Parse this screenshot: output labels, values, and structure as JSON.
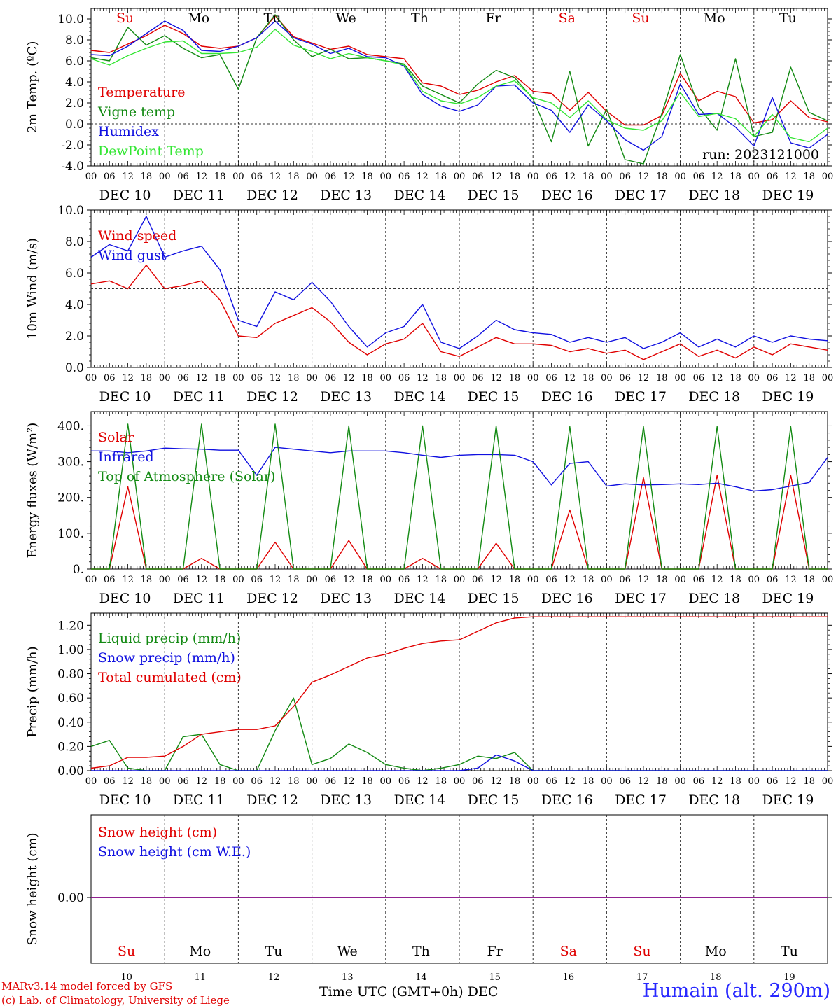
{
  "colors": {
    "red": "#e00000",
    "green": "#138a13",
    "blue": "#1010e0",
    "lightgreen": "#33e633",
    "purple": "#800080",
    "station": "#2828ff"
  },
  "footer": {
    "credit_line1": "MARv3.14 model forced by GFS",
    "credit_line2": "(c) Lab. of Climatology, University of Liege",
    "xaxis_label": "Time UTC (GMT+0h) DEC",
    "station": "Humain (alt. 290m)"
  },
  "days": {
    "weekday_labels": [
      "Su",
      "Mo",
      "Tu",
      "We",
      "Th",
      "Fr",
      "Sa",
      "Su",
      "Mo",
      "Tu"
    ],
    "weekday_red": [
      true,
      false,
      false,
      false,
      false,
      false,
      true,
      true,
      false,
      false
    ],
    "date_labels": [
      "DEC 10",
      "DEC 11",
      "DEC 12",
      "DEC 13",
      "DEC 14",
      "DEC 15",
      "DEC 16",
      "DEC 17",
      "DEC 18",
      "DEC 19"
    ],
    "day_numbers": [
      "10",
      "11",
      "12",
      "13",
      "14",
      "15",
      "16",
      "17",
      "18",
      "19"
    ],
    "hour_ticks": [
      "00",
      "06",
      "12",
      "18"
    ],
    "final_tick": "00"
  },
  "chart_data": [
    {
      "type": "line",
      "id": "temperature",
      "ylabel": "2m Temp. (ºC)",
      "ylim": [
        -4,
        11
      ],
      "yticks": [
        "-4.0",
        "-2.0",
        "0.0",
        "2.0",
        "4.0",
        "6.0",
        "8.0",
        "10.0"
      ],
      "ref_line": 0,
      "annotation": "run: 2023121000",
      "x_hours": [
        0,
        6,
        12,
        18,
        24,
        30,
        36,
        42,
        48,
        54,
        60,
        66,
        72,
        78,
        84,
        90,
        96,
        102,
        108,
        114,
        120,
        126,
        132,
        138,
        144,
        150,
        156,
        162,
        168,
        174,
        180,
        186,
        192,
        198,
        204,
        210,
        216,
        222,
        228,
        234,
        240
      ],
      "series": [
        {
          "name": "Temperature",
          "color": "red",
          "values": [
            7.0,
            6.8,
            7.6,
            8.4,
            9.4,
            8.6,
            7.4,
            7.2,
            7.4,
            8.2,
            10.3,
            8.3,
            7.7,
            7.1,
            7.4,
            6.6,
            6.4,
            6.2,
            3.9,
            3.6,
            2.8,
            3.2,
            4.0,
            4.6,
            3.1,
            2.9,
            1.3,
            3.0,
            1.2,
            -0.1,
            -0.1,
            0.8,
            4.8,
            2.2,
            3.1,
            2.6,
            0.1,
            0.4,
            2.2,
            0.6,
            0.2
          ]
        },
        {
          "name": "Vigne temp",
          "color": "green",
          "values": [
            6.3,
            6.0,
            9.2,
            7.5,
            8.4,
            7.2,
            6.3,
            6.6,
            3.3,
            8.2,
            10.4,
            8.0,
            6.4,
            7.1,
            6.2,
            6.3,
            6.0,
            5.7,
            3.6,
            2.8,
            2.0,
            3.8,
            5.1,
            4.4,
            2.4,
            -1.7,
            5.0,
            -2.1,
            1.4,
            -3.4,
            -3.8,
            1.0,
            6.6,
            1.6,
            -0.6,
            6.2,
            -1.2,
            -0.8,
            5.4,
            1.1,
            0.3
          ]
        },
        {
          "name": "Humidex",
          "color": "blue",
          "values": [
            6.6,
            6.5,
            7.4,
            8.6,
            9.8,
            8.9,
            7.0,
            6.9,
            7.4,
            8.2,
            9.8,
            8.2,
            7.6,
            6.7,
            7.2,
            6.4,
            6.3,
            5.5,
            2.8,
            1.7,
            1.2,
            1.8,
            3.6,
            3.7,
            2.0,
            1.3,
            -0.8,
            1.8,
            0.3,
            -1.5,
            -2.5,
            -1.2,
            3.8,
            0.9,
            1.0,
            -0.3,
            -2.1,
            2.5,
            -1.8,
            -2.3,
            -1.0
          ]
        },
        {
          "name": "DewPoint Temp",
          "color": "lightgreen",
          "values": [
            6.2,
            5.6,
            6.5,
            7.2,
            7.8,
            7.9,
            6.7,
            6.7,
            6.8,
            7.3,
            9.0,
            7.5,
            6.9,
            6.2,
            6.7,
            6.3,
            6.0,
            5.6,
            3.1,
            2.2,
            1.9,
            2.5,
            3.6,
            4.1,
            2.5,
            2.0,
            0.6,
            2.2,
            0.4,
            -0.4,
            -0.6,
            0.3,
            3.0,
            0.7,
            1.0,
            0.5,
            -1.2,
            0.9,
            -1.3,
            -1.7,
            -0.4
          ]
        }
      ]
    },
    {
      "type": "line",
      "id": "wind",
      "ylabel": "10m Wind (m/s)",
      "ylim": [
        0,
        10
      ],
      "yticks": [
        "0.0",
        "2.0",
        "4.0",
        "6.0",
        "8.0",
        "10.0"
      ],
      "ref_line": 5,
      "x_hours": [
        0,
        6,
        12,
        18,
        24,
        30,
        36,
        42,
        48,
        54,
        60,
        66,
        72,
        78,
        84,
        90,
        96,
        102,
        108,
        114,
        120,
        126,
        132,
        138,
        144,
        150,
        156,
        162,
        168,
        174,
        180,
        186,
        192,
        198,
        204,
        210,
        216,
        222,
        228,
        234,
        240
      ],
      "series": [
        {
          "name": "Wind speed",
          "color": "red",
          "values": [
            5.3,
            5.5,
            5.0,
            6.5,
            5.0,
            5.2,
            5.5,
            4.3,
            2.0,
            1.9,
            2.8,
            3.3,
            3.8,
            2.9,
            1.6,
            0.8,
            1.5,
            1.8,
            2.8,
            1.0,
            0.7,
            1.3,
            1.9,
            1.5,
            1.5,
            1.4,
            1.0,
            1.2,
            0.9,
            1.1,
            0.5,
            1.0,
            1.5,
            0.7,
            1.1,
            0.6,
            1.3,
            0.8,
            1.5,
            1.3,
            1.1
          ]
        },
        {
          "name": "Wind gust",
          "color": "blue",
          "values": [
            7.0,
            7.8,
            7.4,
            9.6,
            7.0,
            7.4,
            7.7,
            6.2,
            3.0,
            2.6,
            4.8,
            4.3,
            5.4,
            4.2,
            2.6,
            1.3,
            2.2,
            2.6,
            4.0,
            1.6,
            1.2,
            2.0,
            3.0,
            2.4,
            2.2,
            2.1,
            1.6,
            1.9,
            1.6,
            1.9,
            1.2,
            1.6,
            2.2,
            1.3,
            1.8,
            1.3,
            2.0,
            1.6,
            2.0,
            1.8,
            1.7
          ]
        }
      ]
    },
    {
      "type": "line",
      "id": "energy",
      "ylabel": "Energy fluxes (W/m²)",
      "ylim": [
        0,
        440
      ],
      "yticks": [
        "0.",
        "100.",
        "200.",
        "300.",
        "400."
      ],
      "x_hours": [
        0,
        6,
        12,
        18,
        24,
        30,
        36,
        42,
        48,
        54,
        60,
        66,
        72,
        78,
        84,
        90,
        96,
        102,
        108,
        114,
        120,
        126,
        132,
        138,
        144,
        150,
        156,
        162,
        168,
        174,
        180,
        186,
        192,
        198,
        204,
        210,
        216,
        222,
        228,
        234,
        240
      ],
      "series": [
        {
          "name": "Solar",
          "color": "red",
          "values": [
            0,
            0,
            230,
            0,
            0,
            0,
            30,
            0,
            0,
            0,
            75,
            0,
            0,
            0,
            80,
            0,
            0,
            0,
            30,
            0,
            0,
            0,
            72,
            0,
            0,
            0,
            165,
            0,
            0,
            0,
            255,
            0,
            0,
            0,
            262,
            0,
            0,
            0,
            262,
            0,
            0
          ]
        },
        {
          "name": "Infrared",
          "color": "blue",
          "values": [
            330,
            330,
            325,
            330,
            338,
            336,
            335,
            332,
            332,
            262,
            340,
            335,
            330,
            325,
            330,
            330,
            330,
            325,
            318,
            312,
            318,
            320,
            320,
            318,
            300,
            235,
            295,
            300,
            232,
            238,
            235,
            236,
            238,
            236,
            240,
            230,
            218,
            222,
            232,
            242,
            312
          ]
        },
        {
          "name": "Top of Atmosphere (Solar)",
          "color": "green",
          "values": [
            0,
            0,
            405,
            0,
            0,
            0,
            405,
            0,
            0,
            0,
            405,
            0,
            0,
            0,
            400,
            0,
            0,
            0,
            400,
            0,
            0,
            0,
            400,
            0,
            0,
            0,
            398,
            0,
            0,
            0,
            398,
            0,
            0,
            0,
            398,
            0,
            0,
            0,
            398,
            0,
            0
          ]
        }
      ]
    },
    {
      "type": "line",
      "id": "precip",
      "ylabel": "Precip (mm/h)",
      "ylim": [
        0,
        1.3
      ],
      "yticks": [
        "0.00",
        "0.20",
        "0.40",
        "0.60",
        "0.80",
        "1.00",
        "1.20"
      ],
      "x_hours": [
        0,
        6,
        12,
        18,
        24,
        30,
        36,
        42,
        48,
        54,
        60,
        66,
        72,
        78,
        84,
        90,
        96,
        102,
        108,
        114,
        120,
        126,
        132,
        138,
        144,
        150,
        156,
        162,
        168,
        174,
        180,
        186,
        192,
        198,
        204,
        210,
        216,
        222,
        228,
        234,
        240
      ],
      "series": [
        {
          "name": "Liquid precip (mm/h)",
          "color": "green",
          "values": [
            0.2,
            0.25,
            0.02,
            0.0,
            0.0,
            0.28,
            0.3,
            0.05,
            0.0,
            0.0,
            0.33,
            0.6,
            0.05,
            0.1,
            0.22,
            0.15,
            0.05,
            0.02,
            0.0,
            0.02,
            0.05,
            0.12,
            0.1,
            0.15,
            0.0,
            0.0,
            0.0,
            0.0,
            0.0,
            0.0,
            0.0,
            0.0,
            0.0,
            0.0,
            0.0,
            0.0,
            0.0,
            0.0,
            0.0,
            0.0,
            0.0
          ]
        },
        {
          "name": "Snow precip (mm/h)",
          "color": "blue",
          "values": [
            0,
            0,
            0,
            0,
            0,
            0,
            0,
            0,
            0,
            0,
            0,
            0,
            0,
            0,
            0,
            0,
            0,
            0,
            0,
            0,
            0,
            0.02,
            0.13,
            0.08,
            0,
            0,
            0,
            0,
            0,
            0,
            0,
            0,
            0,
            0,
            0,
            0,
            0,
            0,
            0,
            0,
            0
          ]
        },
        {
          "name": "Total cumulated (cm)",
          "color": "red",
          "values": [
            0.02,
            0.04,
            0.11,
            0.11,
            0.12,
            0.2,
            0.3,
            0.32,
            0.34,
            0.34,
            0.37,
            0.53,
            0.73,
            0.79,
            0.86,
            0.93,
            0.96,
            1.01,
            1.05,
            1.07,
            1.08,
            1.15,
            1.22,
            1.26,
            1.27,
            1.27,
            1.27,
            1.27,
            1.27,
            1.27,
            1.27,
            1.27,
            1.27,
            1.27,
            1.27,
            1.27,
            1.27,
            1.27,
            1.27,
            1.27,
            1.27
          ]
        }
      ]
    },
    {
      "type": "line",
      "id": "snow",
      "ylabel": "Snow height (cm)",
      "yticks": [
        "0.00"
      ],
      "x_hours": [
        0,
        240
      ],
      "series": [
        {
          "name": "Snow height (cm)",
          "color": "red",
          "values": [
            0,
            0
          ]
        },
        {
          "name": "Snow height (cm W.E.)",
          "color": "blue",
          "values": [
            0,
            0
          ]
        }
      ]
    }
  ]
}
